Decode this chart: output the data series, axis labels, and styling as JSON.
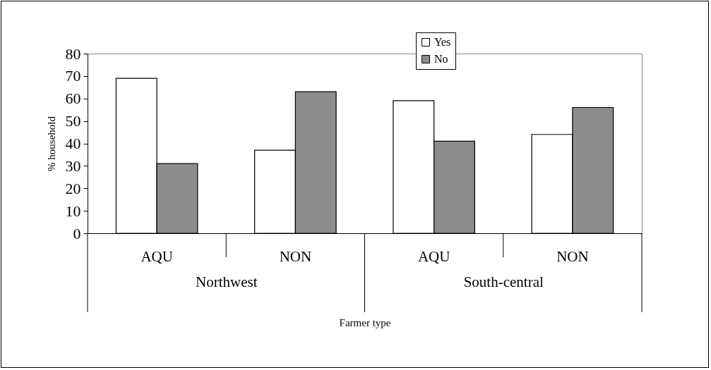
{
  "chart_data": {
    "type": "bar",
    "xlabel": "Farmer type",
    "ylabel": "% household",
    "categories": [
      "AQU",
      "NON",
      "AQU",
      "NON"
    ],
    "series": [
      {
        "name": "Yes",
        "color": "#ffffff",
        "values": [
          69,
          37,
          59,
          44
        ]
      },
      {
        "name": "No",
        "color": "#8c8c8c",
        "values": [
          31,
          63,
          41,
          56
        ]
      }
    ],
    "ylim": [
      0,
      80
    ],
    "yticks": [
      0,
      10,
      20,
      30,
      40,
      50,
      60,
      70,
      80
    ],
    "grid": false,
    "legend": "top right",
    "annotations": [
      "Northwest",
      "South-central"
    ]
  }
}
